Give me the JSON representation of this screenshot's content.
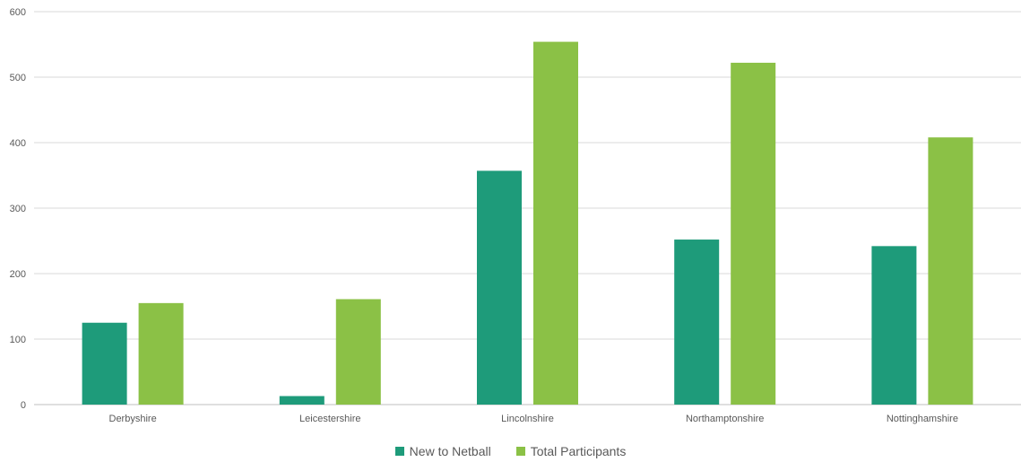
{
  "chart_data": {
    "type": "bar",
    "categories": [
      "Derbyshire",
      "Leicestershire",
      "Lincolnshire",
      "Northamptonshire",
      "Nottinghamshire"
    ],
    "series": [
      {
        "name": "New to Netball",
        "values": [
          125,
          13,
          357,
          252,
          242
        ],
        "color": "#1e9b7a"
      },
      {
        "name": "Total Participants",
        "values": [
          155,
          161,
          554,
          522,
          408
        ],
        "color": "#8bc146"
      }
    ],
    "title": "",
    "xlabel": "",
    "ylabel": "",
    "ylim": [
      0,
      600
    ],
    "yticks": [
      0,
      100,
      200,
      300,
      400,
      500,
      600
    ],
    "grid": true,
    "legend_position": "bottom"
  }
}
